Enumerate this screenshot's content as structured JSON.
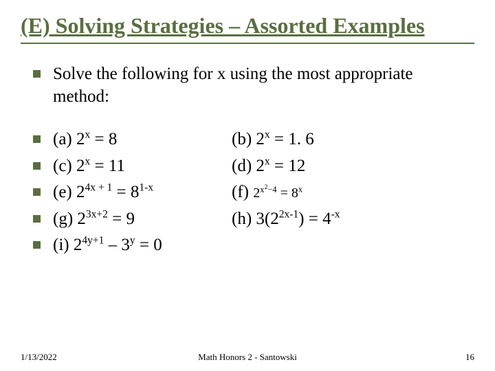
{
  "title": "(E) Solving Strategies – Assorted Examples",
  "intro": "Solve the following for x using the most appropriate method:",
  "rows": [
    {
      "left_label": "(a) ",
      "left_base": "2",
      "left_exp": "x",
      "left_rest": " = 8",
      "right_label": "(b) ",
      "right_base": "2",
      "right_exp": "x",
      "right_rest": " = 1. 6"
    },
    {
      "left_label": "(c) ",
      "left_base": "2",
      "left_exp": "x",
      "left_rest": " = 11",
      "right_label": "(d) ",
      "right_base": "2",
      "right_exp": "x",
      "right_rest": " = 12"
    },
    {
      "left_label": "(e) ",
      "left_base": "2",
      "left_exp": "4x + 1",
      "left_rest_base": "8",
      "left_rest_exp": "1-x",
      "right_label": "(f)  ",
      "right_special": true
    },
    {
      "left_label": "(g) ",
      "left_base": "2",
      "left_exp": "3x+2",
      "left_rest": " = 9",
      "right_label": "(h) 3(",
      "right_base": "2",
      "right_exp": "2x-1",
      "right_rest_base": "4",
      "right_rest_exp": "-x",
      "right_close": ") = "
    },
    {
      "left_label": "(i) ",
      "left_base": "2",
      "left_exp": "4y+1",
      "left_mid": " – ",
      "left_base2": "3",
      "left_exp2": "y",
      "left_rest": " = 0"
    }
  ],
  "footer": {
    "date": "1/13/2022",
    "center": "Math Honors 2 - Santowski",
    "page": "16"
  },
  "colors": {
    "accent": "#5a6e41",
    "text": "#000000",
    "background": "#ffffff"
  }
}
